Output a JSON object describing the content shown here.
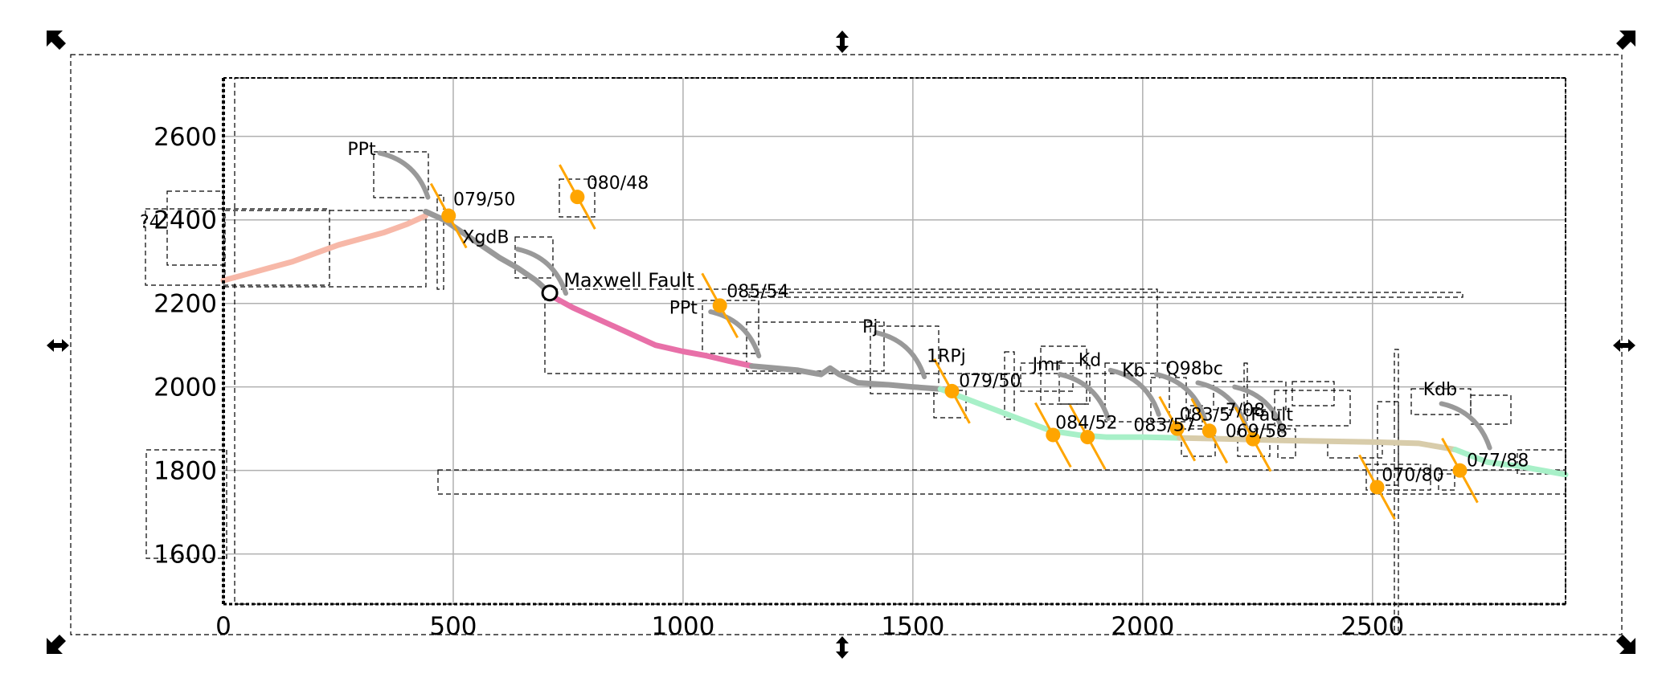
{
  "colors": {
    "grid": "#b0b0b0",
    "profile_grey": "#999999",
    "salmon": "#f7b8a8",
    "pink": "#e870a8",
    "mint": "#a8f0c8",
    "tan": "#d8ccaa",
    "marker": "#ffa500",
    "selection": "#000000"
  },
  "chart_data": {
    "type": "line",
    "title": "",
    "xlabel": "",
    "ylabel": "",
    "xlim": [
      0,
      2920
    ],
    "ylim": [
      1480,
      2740
    ],
    "grid": true,
    "x_ticks": [
      0,
      500,
      1000,
      1500,
      2000,
      2500
    ],
    "x_tick_labels": [
      "0",
      "500",
      "1000",
      "1500",
      "2000",
      "2500"
    ],
    "y_ticks": [
      1600,
      1800,
      2000,
      2200,
      2400,
      2600
    ],
    "y_tick_labels": [
      "1600",
      "1800",
      "2000",
      "2200",
      "2400",
      "2600"
    ],
    "y_label_partial": "?4",
    "series": [
      {
        "color_key": "salmon",
        "x": [
          0,
          50,
          100,
          150,
          200,
          250,
          300,
          350,
          400,
          440
        ],
        "y": [
          2255,
          2270,
          2285,
          2300,
          2320,
          2340,
          2355,
          2370,
          2390,
          2410
        ]
      },
      {
        "color_key": "profile_grey",
        "x": [
          440,
          480,
          520,
          560,
          600,
          640,
          680,
          710
        ],
        "y": [
          2420,
          2400,
          2370,
          2340,
          2310,
          2285,
          2255,
          2225
        ]
      },
      {
        "color_key": "pink",
        "x": [
          710,
          760,
          820,
          880,
          940,
          1000,
          1050,
          1100,
          1150
        ],
        "y": [
          2220,
          2190,
          2160,
          2130,
          2100,
          2085,
          2075,
          2062,
          2050
        ]
      },
      {
        "color_key": "profile_grey",
        "x": [
          1150,
          1200,
          1250,
          1300,
          1320,
          1340,
          1380,
          1450,
          1500,
          1560
        ],
        "y": [
          2050,
          2045,
          2040,
          2030,
          2045,
          2030,
          2010,
          2005,
          2000,
          1995
        ]
      },
      {
        "color_key": "mint",
        "x": [
          1560,
          1620,
          1680,
          1740,
          1800,
          1860,
          1920,
          2000,
          2080
        ],
        "y": [
          1995,
          1970,
          1945,
          1920,
          1895,
          1885,
          1880,
          1880,
          1878
        ]
      },
      {
        "color_key": "tan",
        "x": [
          2080,
          2200,
          2300,
          2400,
          2500,
          2600,
          2680
        ],
        "y": [
          1878,
          1875,
          1872,
          1870,
          1868,
          1865,
          1850
        ]
      },
      {
        "color_key": "mint",
        "x": [
          2680,
          2750,
          2820,
          2920
        ],
        "y": [
          1850,
          1820,
          1810,
          1790
        ]
      }
    ],
    "annotations": [
      {
        "text": "PPt",
        "x": 270,
        "y": 2555
      },
      {
        "text": "079/50",
        "x": 500,
        "y": 2435
      },
      {
        "text": "080/48",
        "x": 790,
        "y": 2475
      },
      {
        "text": "XgdB",
        "x": 520,
        "y": 2345
      },
      {
        "text": "Maxwell Fault",
        "x": 740,
        "y": 2240
      },
      {
        "text": "085/54",
        "x": 1095,
        "y": 2215
      },
      {
        "text": "PPt",
        "x": 970,
        "y": 2175
      },
      {
        "text": "Pj",
        "x": 1390,
        "y": 2130
      },
      {
        "text": "1RPj",
        "x": 1530,
        "y": 2060
      },
      {
        "text": "079/50",
        "x": 1600,
        "y": 2000
      },
      {
        "text": "Jmr",
        "x": 1760,
        "y": 2040
      },
      {
        "text": "Kd",
        "x": 1860,
        "y": 2050
      },
      {
        "text": "Kb",
        "x": 1955,
        "y": 2025
      },
      {
        "text": "Q98bc",
        "x": 2050,
        "y": 2030
      },
      {
        "text": "084/52",
        "x": 1810,
        "y": 1900
      },
      {
        "text": "083/57",
        "x": 1980,
        "y": 1895
      },
      {
        "text": "083/5",
        "x": 2080,
        "y": 1920
      },
      {
        "text": "7/08",
        "x": 2180,
        "y": 1930
      },
      {
        "text": "Fault",
        "x": 2235,
        "y": 1920
      },
      {
        "text": "069/58",
        "x": 2180,
        "y": 1880
      },
      {
        "text": "Kdb",
        "x": 2610,
        "y": 1980
      },
      {
        "text": "077/88",
        "x": 2705,
        "y": 1810
      },
      {
        "text": "070/80",
        "x": 2520,
        "y": 1775
      }
    ],
    "structural_markers": [
      {
        "label": "079/50",
        "x": 490,
        "y": 2410
      },
      {
        "label": "080/48",
        "x": 770,
        "y": 2455
      },
      {
        "label": "085/54",
        "x": 1080,
        "y": 2195
      },
      {
        "label": "079/50",
        "x": 1585,
        "y": 1990
      },
      {
        "label": "084/52",
        "x": 1805,
        "y": 1885
      },
      {
        "label": "084/52",
        "x": 1880,
        "y": 1880
      },
      {
        "label": "083/57",
        "x": 2075,
        "y": 1900
      },
      {
        "label": "083/57",
        "x": 2145,
        "y": 1895
      },
      {
        "label": "069/58",
        "x": 2240,
        "y": 1875
      },
      {
        "label": "070/80",
        "x": 2510,
        "y": 1760
      },
      {
        "label": "077/88",
        "x": 2690,
        "y": 1800
      }
    ],
    "fault_point": {
      "label": "Maxwell Fault",
      "x": 710,
      "y": 2225
    }
  }
}
